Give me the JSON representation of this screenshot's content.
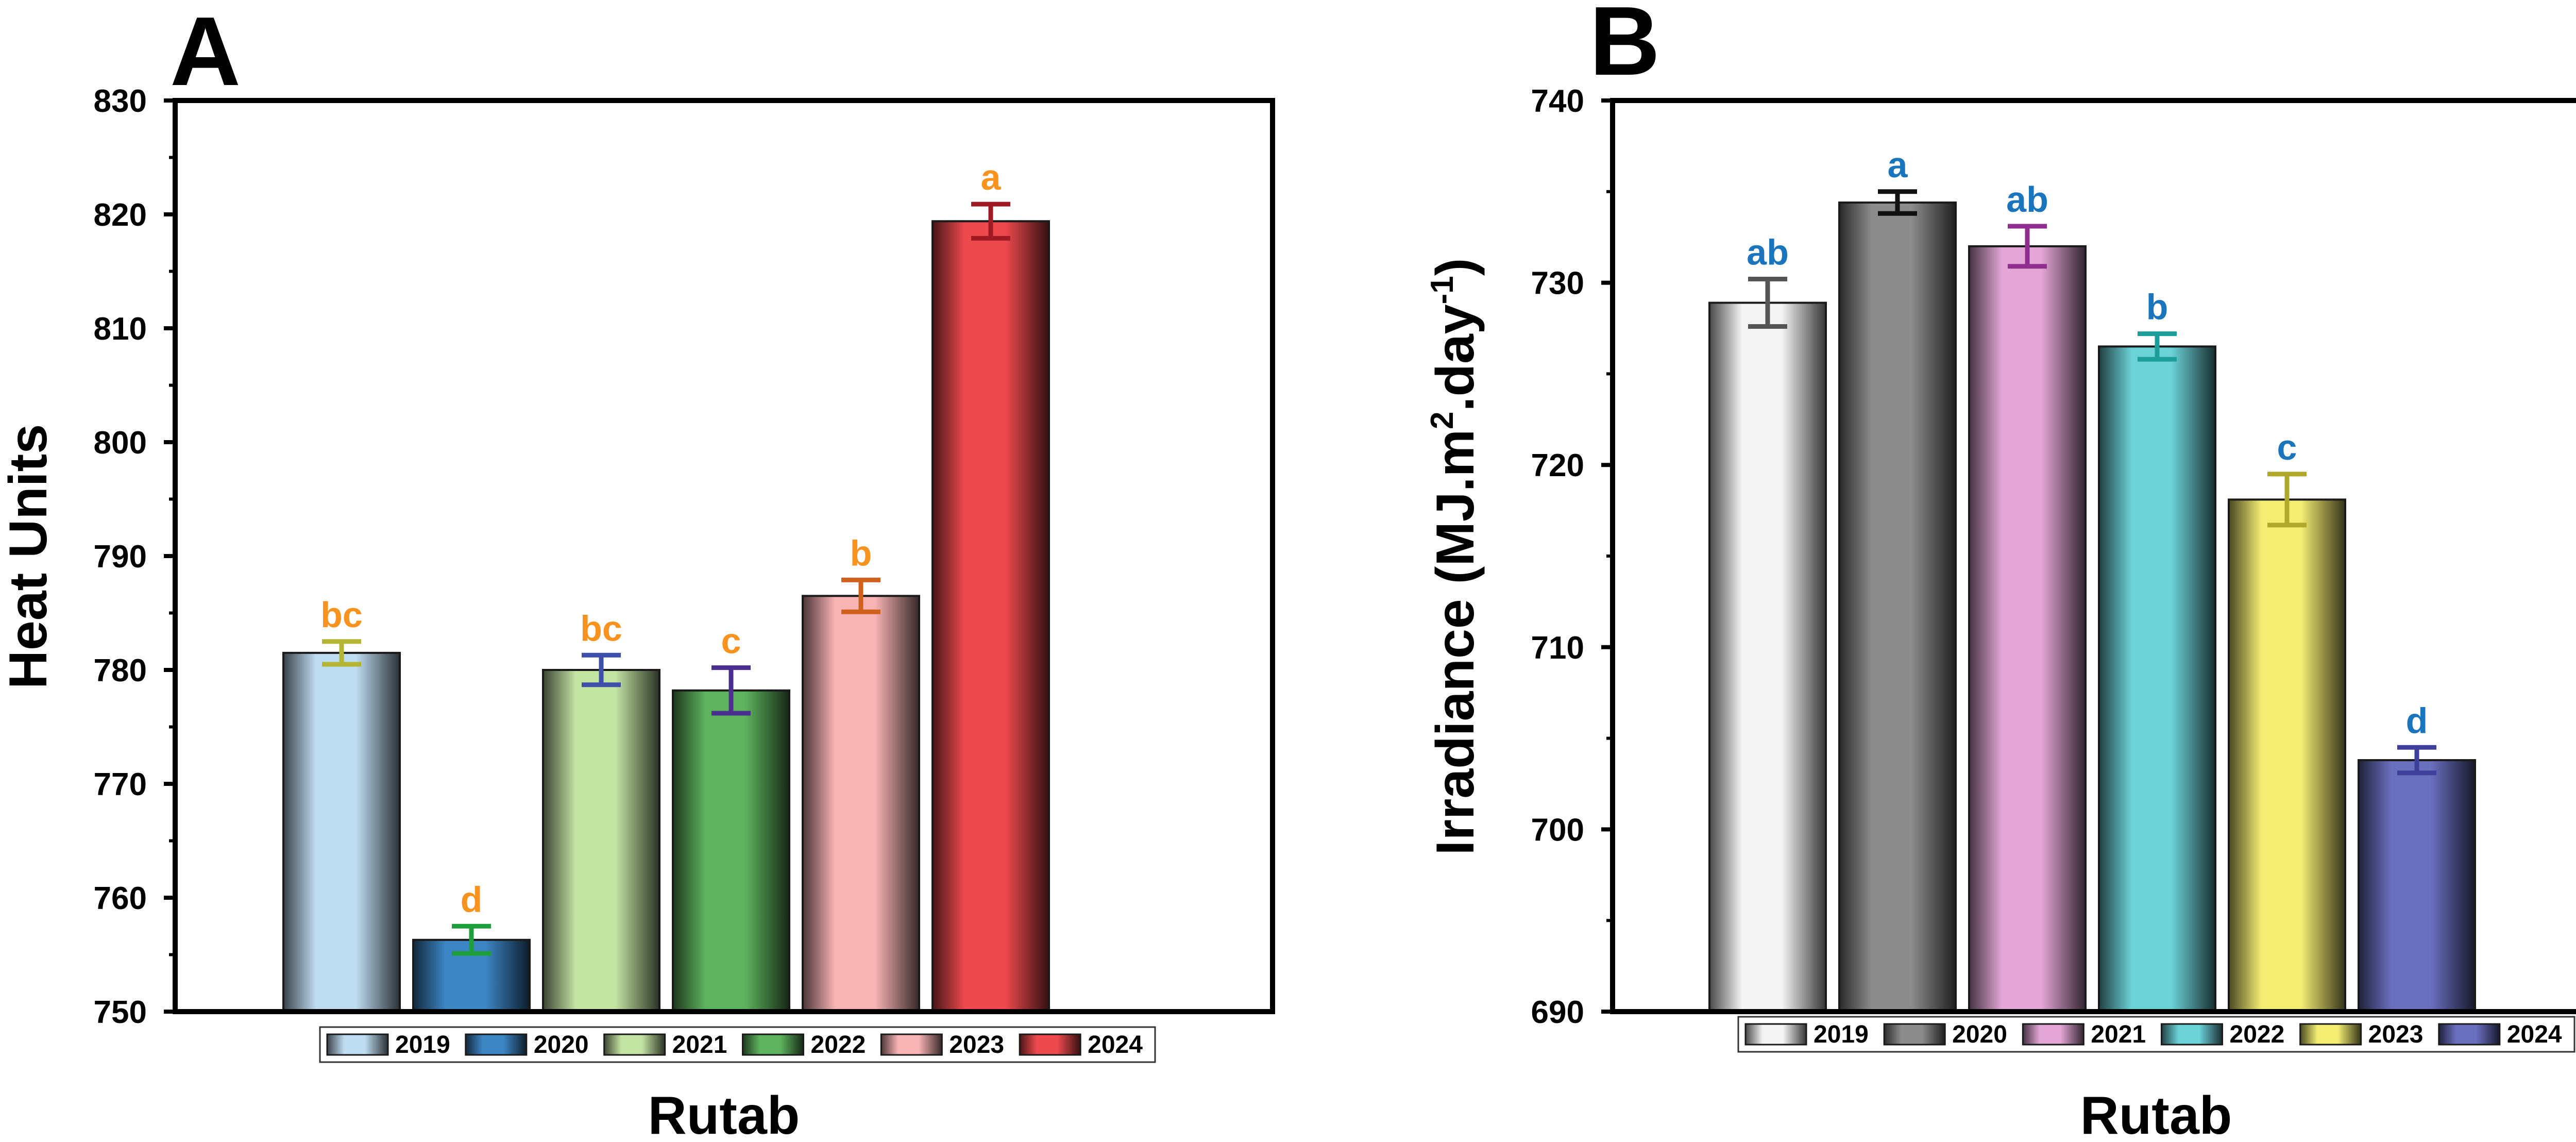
{
  "chart_data": [
    {
      "panel": "A",
      "type": "bar",
      "ylabel": "Heat Units",
      "xlabel": "Rutab",
      "ylim": [
        750,
        830
      ],
      "yticks": [
        750,
        760,
        770,
        780,
        790,
        800,
        810,
        820,
        830
      ],
      "grid": false,
      "legend_position": "bottom",
      "letter_color": "#F7931E",
      "categories": [
        "2019",
        "2020",
        "2021",
        "2022",
        "2023",
        "2024"
      ],
      "values": [
        781.5,
        756.3,
        780.0,
        778.2,
        786.5,
        819.4
      ],
      "errors": [
        1.0,
        1.2,
        1.3,
        2.0,
        1.4,
        1.5
      ],
      "letters": [
        "bc",
        "d",
        "bc",
        "c",
        "b",
        "a"
      ],
      "colors": [
        "#BFDDF2",
        "#3C86C4",
        "#C3E3A3",
        "#5EB35E",
        "#F9B4B6",
        "#EE4A4D"
      ],
      "error_colors": [
        "#B5B534",
        "#1E9E3C",
        "#3D4FA8",
        "#4A2F8F",
        "#D0611D",
        "#9E1A25"
      ]
    },
    {
      "panel": "B",
      "type": "bar",
      "ylabel": "Irradiance (MJ.m",
      "ylabel_sup1": "2",
      "ylabel_mid": ".day",
      "ylabel_sup2": "-1",
      "ylabel_end": ")",
      "xlabel": "Rutab",
      "ylim": [
        690,
        740
      ],
      "yticks": [
        690,
        700,
        710,
        720,
        730,
        740
      ],
      "grid": false,
      "legend_position": "bottom",
      "letter_color": "#1A75BC",
      "categories": [
        "2019",
        "2020",
        "2021",
        "2022",
        "2023",
        "2024"
      ],
      "values": [
        728.9,
        734.4,
        732.0,
        726.5,
        718.1,
        703.8
      ],
      "errors": [
        1.3,
        0.6,
        1.1,
        0.7,
        1.4,
        0.7
      ],
      "letters": [
        "ab",
        "a",
        "ab",
        "b",
        "c",
        "d"
      ],
      "colors": [
        "#F4F4F4",
        "#8C8C8C",
        "#E3A6D6",
        "#6BD2D8",
        "#F3ED72",
        "#6A6FBE"
      ],
      "error_colors": [
        "#555555",
        "#111111",
        "#8E2E8F",
        "#1E9E9A",
        "#B0A82A",
        "#3D3F9A"
      ]
    }
  ]
}
